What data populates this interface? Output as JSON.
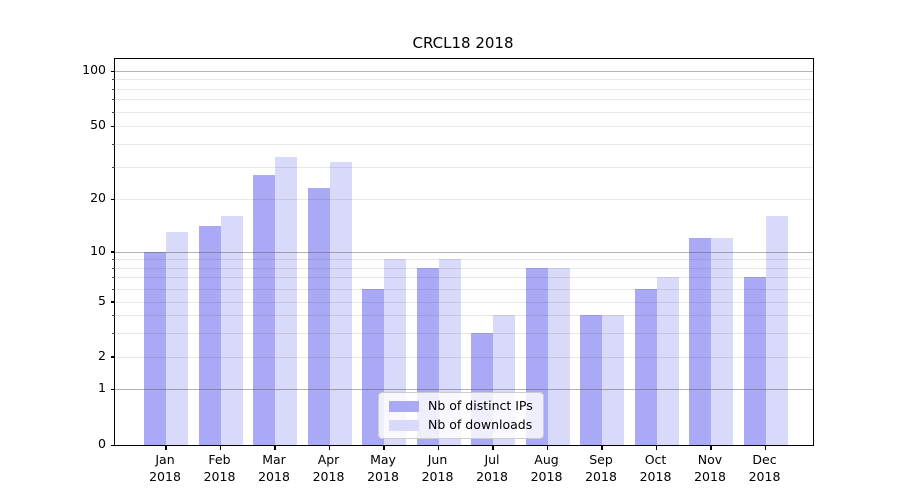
{
  "chart_data": {
    "type": "bar",
    "title": "CRCL18 2018",
    "categories": [
      {
        "month": "Jan",
        "year": "2018"
      },
      {
        "month": "Feb",
        "year": "2018"
      },
      {
        "month": "Mar",
        "year": "2018"
      },
      {
        "month": "Apr",
        "year": "2018"
      },
      {
        "month": "May",
        "year": "2018"
      },
      {
        "month": "Jun",
        "year": "2018"
      },
      {
        "month": "Jul",
        "year": "2018"
      },
      {
        "month": "Aug",
        "year": "2018"
      },
      {
        "month": "Sep",
        "year": "2018"
      },
      {
        "month": "Oct",
        "year": "2018"
      },
      {
        "month": "Nov",
        "year": "2018"
      },
      {
        "month": "Dec",
        "year": "2018"
      }
    ],
    "series": [
      {
        "name": "Nb of distinct IPs",
        "color": "#a9a9f5",
        "values": [
          10,
          14,
          27,
          23,
          6,
          8,
          3,
          8,
          4,
          6,
          12,
          7
        ]
      },
      {
        "name": "Nb of downloads",
        "color": "#d9d9fa",
        "values": [
          13,
          16,
          34,
          32,
          9,
          9,
          4,
          8,
          4,
          7,
          12,
          16
        ]
      }
    ],
    "y_axis": {
      "scale": "symlog",
      "tick_labels": [
        "100",
        "50",
        "20",
        "10",
        "5",
        "2",
        "1",
        "0"
      ],
      "tick_values": [
        100,
        50,
        20,
        10,
        5,
        2,
        1,
        0
      ],
      "minor_grid_values": [
        2,
        3,
        4,
        5,
        6,
        7,
        8,
        9,
        20,
        30,
        40,
        50,
        60,
        70,
        80,
        90
      ],
      "major_grid_values": [
        1,
        10,
        100
      ]
    },
    "legend": {
      "position": "lower center",
      "entries": [
        "Nb of distinct IPs",
        "Nb of downloads"
      ]
    },
    "grid": true,
    "colors": {
      "major_grid": "#b0b0b0",
      "minor_grid": "#e8e8e8",
      "spine": "#000000",
      "background": "#ffffff"
    }
  }
}
